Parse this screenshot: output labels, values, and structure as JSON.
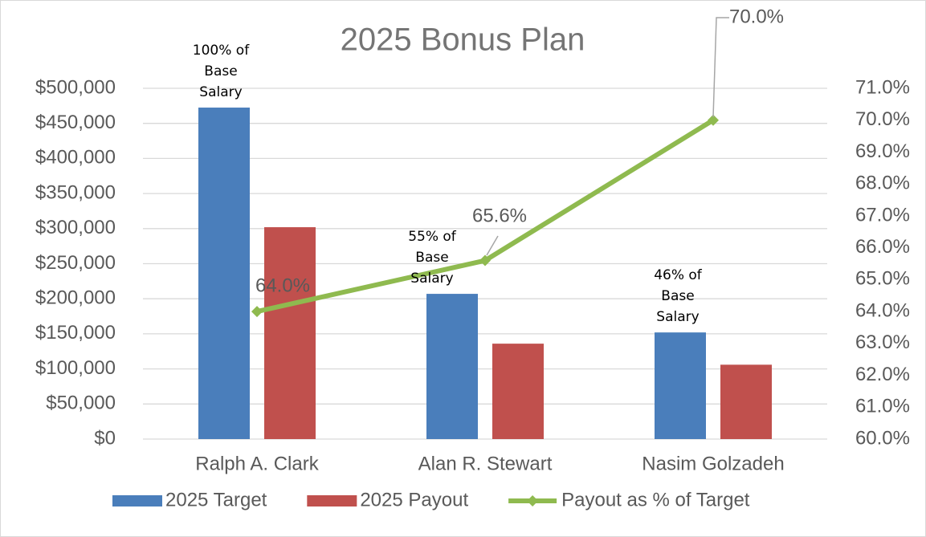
{
  "chart_data": {
    "type": "bar",
    "title": "2025 Bonus Plan",
    "categories": [
      "Ralph A. Clark",
      "Alan R. Stewart",
      "Nasim Golzadeh"
    ],
    "series": [
      {
        "name": "2025 Target",
        "color": "#4a7ebb",
        "values": [
          472500,
          207000,
          152000
        ]
      },
      {
        "name": "2025 Payout",
        "color": "#c0504d",
        "values": [
          302000,
          136000,
          106000
        ]
      },
      {
        "name": "Payout as % of Target",
        "color": "#8fba4f",
        "axis": "y2",
        "type": "line",
        "values": [
          64.0,
          65.6,
          70.0
        ],
        "value_labels": [
          "64.0%",
          "65.6%",
          "70.0%"
        ]
      }
    ],
    "annotations": [
      "100% of Base Salary",
      "55% of Base Salary",
      "46% of Base Salary"
    ],
    "ylim": [
      0,
      500000
    ],
    "yticks": [
      {
        "value": 0,
        "label": "$0"
      },
      {
        "value": 50000,
        "label": "$50,000"
      },
      {
        "value": 100000,
        "label": "$100,000"
      },
      {
        "value": 150000,
        "label": "$150,000"
      },
      {
        "value": 200000,
        "label": "$200,000"
      },
      {
        "value": 250000,
        "label": "$250,000"
      },
      {
        "value": 300000,
        "label": "$300,000"
      },
      {
        "value": 350000,
        "label": "$350,000"
      },
      {
        "value": 400000,
        "label": "$400,000"
      },
      {
        "value": 450000,
        "label": "$450,000"
      },
      {
        "value": 500000,
        "label": "$500,000"
      }
    ],
    "y2lim": [
      60,
      71
    ],
    "y2ticks": [
      {
        "value": 60,
        "label": "60.0%"
      },
      {
        "value": 61,
        "label": "61.0%"
      },
      {
        "value": 62,
        "label": "62.0%"
      },
      {
        "value": 63,
        "label": "63.0%"
      },
      {
        "value": 64,
        "label": "64.0%"
      },
      {
        "value": 65,
        "label": "65.0%"
      },
      {
        "value": 66,
        "label": "66.0%"
      },
      {
        "value": 67,
        "label": "67.0%"
      },
      {
        "value": 68,
        "label": "68.0%"
      },
      {
        "value": 69,
        "label": "69.0%"
      },
      {
        "value": 70,
        "label": "70.0%"
      },
      {
        "value": 71,
        "label": "71.0%"
      }
    ],
    "grid": true,
    "legend": "bottom"
  }
}
